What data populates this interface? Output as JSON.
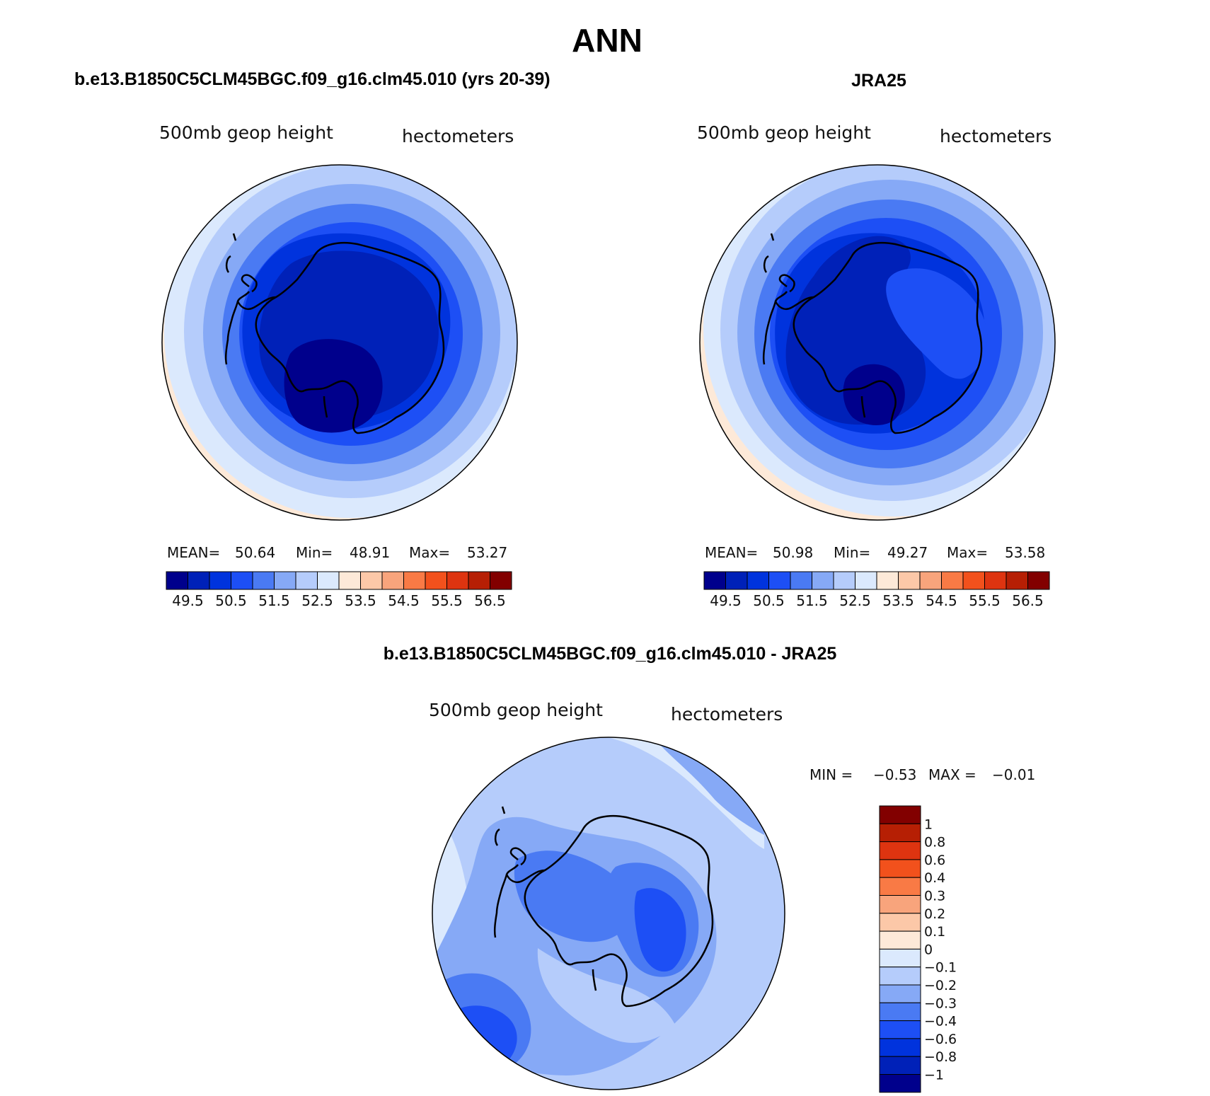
{
  "chart_data": {
    "type": "contour-map",
    "title": "ANN",
    "panels": [
      {
        "id": "model",
        "title": "b.e13.B1850C5CLM45BGC.f09_g16.clm45.010 (yrs 20-39)",
        "variable": "500mb geop height",
        "units": "hectometers",
        "stats": {
          "mean_label": "MEAN=",
          "mean": "50.64",
          "min_label": "Min=",
          "min": "48.91",
          "max_label": "Max=",
          "max": "53.27"
        },
        "levels": [
          "49.5",
          "50.5",
          "51.5",
          "52.5",
          "53.5",
          "54.5",
          "55.5",
          "56.5"
        ]
      },
      {
        "id": "obs",
        "title": "JRA25",
        "variable": "500mb geop height",
        "units": "hectometers",
        "stats": {
          "mean_label": "MEAN=",
          "mean": "50.98",
          "min_label": "Min=",
          "min": "49.27",
          "max_label": "Max=",
          "max": "53.58"
        },
        "levels": [
          "49.5",
          "50.5",
          "51.5",
          "52.5",
          "53.5",
          "54.5",
          "55.5",
          "56.5"
        ]
      },
      {
        "id": "difference",
        "title": "b.e13.B1850C5CLM45BGC.f09_g16.clm45.010 - JRA25",
        "variable": "500mb geop height",
        "units": "hectometers",
        "stats": {
          "min_label": "MIN =",
          "min": "−0.53",
          "max_label": "MAX =",
          "max": "−0.01"
        },
        "levels": [
          "1",
          "0.8",
          "0.6",
          "0.4",
          "0.3",
          "0.2",
          "0.1",
          "0",
          "−0.1",
          "−0.2",
          "−0.3",
          "−0.4",
          "−0.6",
          "−0.8",
          "−1"
        ]
      }
    ],
    "colormap": [
      "#00008c",
      "#0021b8",
      "#0033dd",
      "#1d4ff5",
      "#4a7af3",
      "#86a9f6",
      "#b5ccfb",
      "#dbe9fd",
      "#fde9d8",
      "#fcc8a8",
      "#f8a47c",
      "#f97a45",
      "#f2511c",
      "#de3410",
      "#b61f04",
      "#820000"
    ]
  }
}
